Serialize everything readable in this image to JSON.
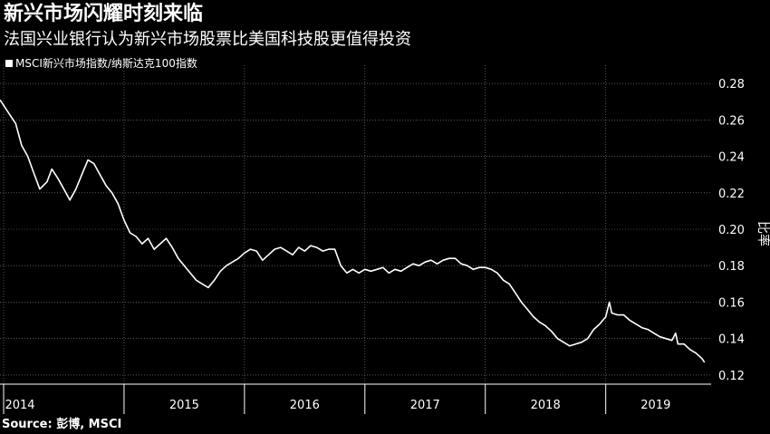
{
  "title": "新兴市场闪耀时刻来临",
  "subtitle": "法国兴业银行认为新兴市场股票比美国科技股更值得投资",
  "source": "Source: 彭博, MSCI",
  "colors": {
    "background": "#000000",
    "line": "#ffffff",
    "grid": "#8a8a8a"
  },
  "chart_data": {
    "type": "line",
    "title": "新兴市场闪耀时刻来临",
    "subtitle": "法国兴业银行认为新兴市场股票比美国科技股更值得投资",
    "ylabel": "比率",
    "ylabel_text": "比率",
    "ylim": [
      0.115,
      0.285
    ],
    "y_ticks": [
      0.12,
      0.14,
      0.16,
      0.18,
      0.2,
      0.22,
      0.24,
      0.26,
      0.28
    ],
    "y_tick_labels": [
      "0.12",
      "0.14",
      "0.16",
      "0.18",
      "0.20",
      "0.22",
      "0.24",
      "0.26",
      "0.28"
    ],
    "x_axis": {
      "start": 2014.0,
      "end": 2019.83,
      "boundaries": [
        2014,
        2015,
        2016,
        2017,
        2018,
        2019
      ]
    },
    "x_tick_labels": [
      {
        "label": "2014",
        "x": 2014.0
      },
      {
        "label": "2015",
        "x": 2015.0
      },
      {
        "label": "2016",
        "x": 2016.0
      },
      {
        "label": "2017",
        "x": 2017.0
      },
      {
        "label": "2018",
        "x": 2018.0
      },
      {
        "label": "2019",
        "x": 2019.0
      }
    ],
    "grid": true,
    "legend_position": "top-left",
    "series": [
      {
        "name": "MSCI新兴市场指数/纳斯达克100指数",
        "points": [
          [
            2013.97,
            0.271
          ],
          [
            2014.05,
            0.263
          ],
          [
            2014.1,
            0.258
          ],
          [
            2014.15,
            0.246
          ],
          [
            2014.2,
            0.24
          ],
          [
            2014.25,
            0.231
          ],
          [
            2014.3,
            0.222
          ],
          [
            2014.36,
            0.226
          ],
          [
            2014.4,
            0.233
          ],
          [
            2014.45,
            0.228
          ],
          [
            2014.5,
            0.222
          ],
          [
            2014.55,
            0.216
          ],
          [
            2014.6,
            0.222
          ],
          [
            2014.65,
            0.23
          ],
          [
            2014.7,
            0.238
          ],
          [
            2014.75,
            0.236
          ],
          [
            2014.8,
            0.23
          ],
          [
            2014.85,
            0.224
          ],
          [
            2014.9,
            0.22
          ],
          [
            2014.95,
            0.214
          ],
          [
            2015.0,
            0.205
          ],
          [
            2015.05,
            0.198
          ],
          [
            2015.1,
            0.196
          ],
          [
            2015.15,
            0.192
          ],
          [
            2015.2,
            0.195
          ],
          [
            2015.25,
            0.189
          ],
          [
            2015.3,
            0.192
          ],
          [
            2015.35,
            0.195
          ],
          [
            2015.4,
            0.19
          ],
          [
            2015.45,
            0.184
          ],
          [
            2015.5,
            0.18
          ],
          [
            2015.55,
            0.176
          ],
          [
            2015.6,
            0.172
          ],
          [
            2015.65,
            0.17
          ],
          [
            2015.7,
            0.168
          ],
          [
            2015.75,
            0.172
          ],
          [
            2015.8,
            0.177
          ],
          [
            2015.85,
            0.18
          ],
          [
            2015.9,
            0.182
          ],
          [
            2015.95,
            0.184
          ],
          [
            2016.0,
            0.187
          ],
          [
            2016.05,
            0.189
          ],
          [
            2016.1,
            0.188
          ],
          [
            2016.15,
            0.183
          ],
          [
            2016.2,
            0.186
          ],
          [
            2016.25,
            0.189
          ],
          [
            2016.3,
            0.19
          ],
          [
            2016.35,
            0.188
          ],
          [
            2016.4,
            0.186
          ],
          [
            2016.45,
            0.19
          ],
          [
            2016.5,
            0.188
          ],
          [
            2016.55,
            0.191
          ],
          [
            2016.6,
            0.19
          ],
          [
            2016.65,
            0.188
          ],
          [
            2016.7,
            0.189
          ],
          [
            2016.75,
            0.189
          ],
          [
            2016.8,
            0.18
          ],
          [
            2016.85,
            0.176
          ],
          [
            2016.9,
            0.178
          ],
          [
            2016.95,
            0.176
          ],
          [
            2017.0,
            0.178
          ],
          [
            2017.05,
            0.177
          ],
          [
            2017.1,
            0.178
          ],
          [
            2017.15,
            0.179
          ],
          [
            2017.2,
            0.176
          ],
          [
            2017.25,
            0.178
          ],
          [
            2017.3,
            0.177
          ],
          [
            2017.35,
            0.179
          ],
          [
            2017.4,
            0.181
          ],
          [
            2017.45,
            0.18
          ],
          [
            2017.5,
            0.182
          ],
          [
            2017.55,
            0.183
          ],
          [
            2017.6,
            0.181
          ],
          [
            2017.65,
            0.183
          ],
          [
            2017.7,
            0.184
          ],
          [
            2017.75,
            0.184
          ],
          [
            2017.8,
            0.181
          ],
          [
            2017.85,
            0.18
          ],
          [
            2017.9,
            0.178
          ],
          [
            2017.95,
            0.179
          ],
          [
            2018.0,
            0.179
          ],
          [
            2018.05,
            0.178
          ],
          [
            2018.1,
            0.176
          ],
          [
            2018.15,
            0.172
          ],
          [
            2018.2,
            0.17
          ],
          [
            2018.25,
            0.165
          ],
          [
            2018.3,
            0.16
          ],
          [
            2018.35,
            0.156
          ],
          [
            2018.4,
            0.152
          ],
          [
            2018.45,
            0.149
          ],
          [
            2018.5,
            0.147
          ],
          [
            2018.55,
            0.144
          ],
          [
            2018.6,
            0.14
          ],
          [
            2018.65,
            0.138
          ],
          [
            2018.7,
            0.136
          ],
          [
            2018.75,
            0.137
          ],
          [
            2018.8,
            0.138
          ],
          [
            2018.85,
            0.14
          ],
          [
            2018.9,
            0.145
          ],
          [
            2018.95,
            0.148
          ],
          [
            2019.0,
            0.152
          ],
          [
            2019.03,
            0.16
          ],
          [
            2019.05,
            0.154
          ],
          [
            2019.1,
            0.153
          ],
          [
            2019.15,
            0.153
          ],
          [
            2019.2,
            0.15
          ],
          [
            2019.25,
            0.148
          ],
          [
            2019.3,
            0.146
          ],
          [
            2019.35,
            0.145
          ],
          [
            2019.4,
            0.143
          ],
          [
            2019.45,
            0.141
          ],
          [
            2019.5,
            0.14
          ],
          [
            2019.55,
            0.139
          ],
          [
            2019.58,
            0.143
          ],
          [
            2019.6,
            0.137
          ],
          [
            2019.65,
            0.137
          ],
          [
            2019.7,
            0.134
          ],
          [
            2019.75,
            0.132
          ],
          [
            2019.8,
            0.129
          ],
          [
            2019.82,
            0.127
          ]
        ]
      }
    ]
  }
}
